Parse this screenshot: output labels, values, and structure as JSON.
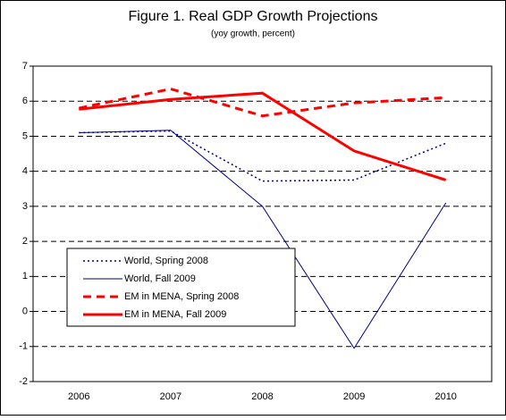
{
  "chart_data": {
    "type": "line",
    "title": "Figure 1. Real GDP Growth Projections",
    "subtitle": "(yoy growth, percent)",
    "categories": [
      "2006",
      "2007",
      "2008",
      "2009",
      "2010"
    ],
    "series": [
      {
        "name": "World, Spring 2008",
        "color": "#000080",
        "style": "dotted",
        "width": 1.5,
        "values": [
          5.1,
          5.15,
          3.72,
          3.75,
          4.8
        ]
      },
      {
        "name": "World, Fall 2009",
        "color": "#000080",
        "style": "solid",
        "width": 1,
        "values": [
          5.1,
          5.17,
          3.0,
          -1.05,
          3.1
        ]
      },
      {
        "name": "EM in MENA, Spring 2008",
        "color": "#ff0000",
        "style": "dashed",
        "width": 3,
        "values": [
          5.8,
          6.35,
          5.58,
          5.95,
          6.1
        ]
      },
      {
        "name": "EM in MENA, Fall 2009",
        "color": "#ff0000",
        "style": "solid",
        "width": 3,
        "values": [
          5.77,
          6.05,
          6.23,
          4.58,
          3.75
        ]
      }
    ],
    "ylim": [
      -2,
      7
    ],
    "yticks": [
      -2,
      -1,
      0,
      1,
      2,
      3,
      4,
      5,
      6,
      7
    ],
    "grid": true,
    "legend": "lower left"
  }
}
